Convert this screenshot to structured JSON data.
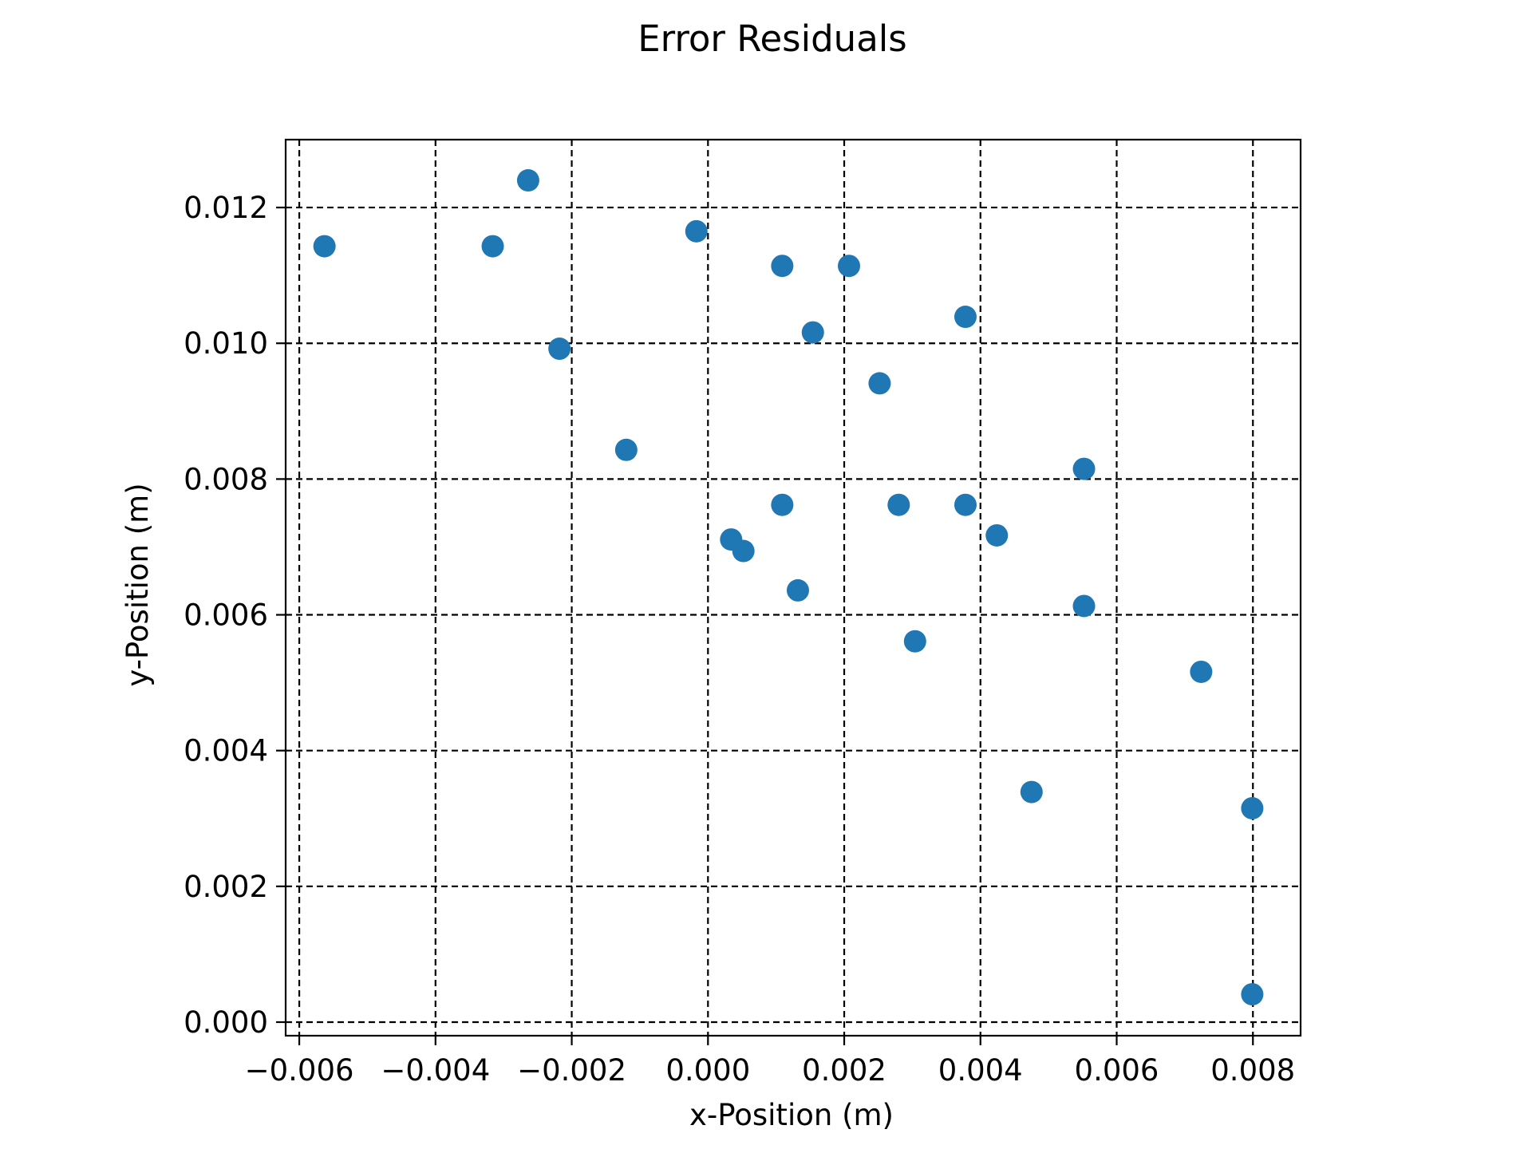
{
  "chart_data": {
    "type": "scatter",
    "title": "Error Residuals",
    "xlabel": "x-Position (m)",
    "ylabel": "y-Position (m)",
    "xlim": [
      -0.0062,
      0.0087
    ],
    "ylim": [
      -0.0002,
      0.013
    ],
    "xticks": [
      -0.006,
      -0.004,
      -0.002,
      0.0,
      0.002,
      0.004,
      0.006,
      0.008
    ],
    "xtick_labels": [
      "−0.006",
      "−0.004",
      "−0.002",
      "0.000",
      "0.002",
      "0.004",
      "0.006",
      "0.008"
    ],
    "yticks": [
      0.0,
      0.002,
      0.004,
      0.006,
      0.008,
      0.01,
      0.012
    ],
    "ytick_labels": [
      "0.000",
      "0.002",
      "0.004",
      "0.006",
      "0.008",
      "0.010",
      "0.012"
    ],
    "grid": true,
    "grid_style": "dashed",
    "marker_color": "#1f77b4",
    "points": [
      {
        "x": -0.00563,
        "y": 0.01143
      },
      {
        "x": -0.00316,
        "y": 0.01143
      },
      {
        "x": -0.00264,
        "y": 0.0124
      },
      {
        "x": -0.00218,
        "y": 0.00992
      },
      {
        "x": -0.0012,
        "y": 0.00843
      },
      {
        "x": -0.00017,
        "y": 0.01165
      },
      {
        "x": 0.00034,
        "y": 0.00711
      },
      {
        "x": 0.00052,
        "y": 0.00694
      },
      {
        "x": 0.00109,
        "y": 0.01114
      },
      {
        "x": 0.00109,
        "y": 0.00762
      },
      {
        "x": 0.00132,
        "y": 0.00636
      },
      {
        "x": 0.00154,
        "y": 0.01016
      },
      {
        "x": 0.00207,
        "y": 0.01114
      },
      {
        "x": 0.00252,
        "y": 0.00941
      },
      {
        "x": 0.0028,
        "y": 0.00762
      },
      {
        "x": 0.00304,
        "y": 0.00561
      },
      {
        "x": 0.00378,
        "y": 0.01039
      },
      {
        "x": 0.00378,
        "y": 0.00762
      },
      {
        "x": 0.00424,
        "y": 0.00717
      },
      {
        "x": 0.00475,
        "y": 0.00339
      },
      {
        "x": 0.00552,
        "y": 0.00815
      },
      {
        "x": 0.00552,
        "y": 0.00613
      },
      {
        "x": 0.00724,
        "y": 0.00516
      },
      {
        "x": 0.00799,
        "y": 0.00315
      },
      {
        "x": 0.00799,
        "y": 0.00041
      }
    ]
  }
}
